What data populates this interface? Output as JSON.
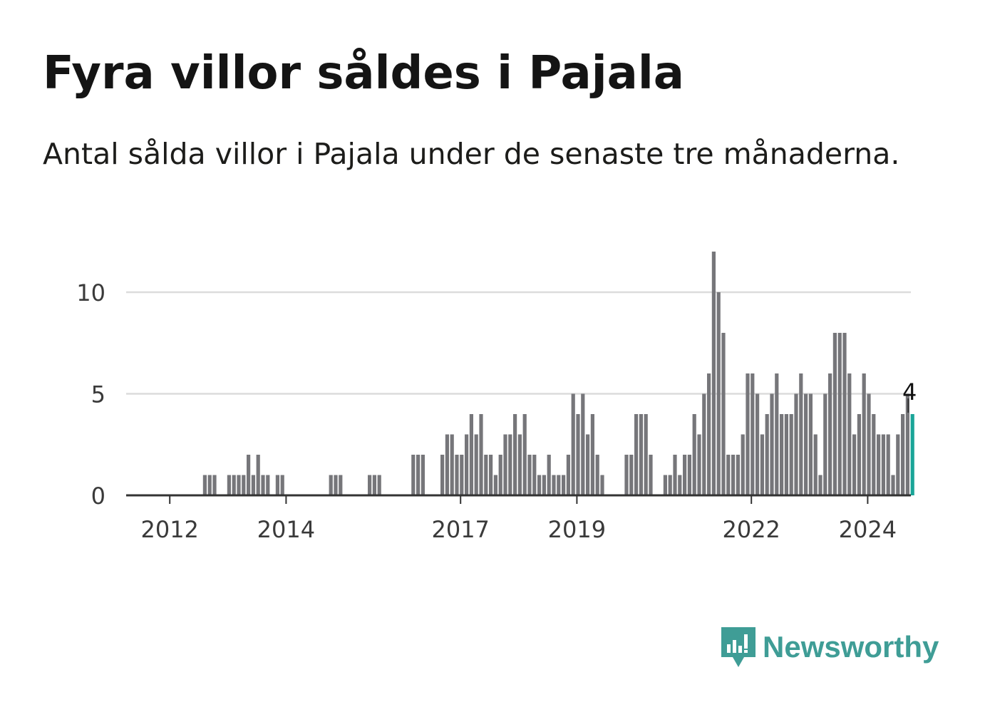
{
  "header": {
    "title": "Fyra villor såldes i Pajala",
    "subtitle": "Antal sålda villor i Pajala under de senaste tre månaderna."
  },
  "colors": {
    "bar": "#76767a",
    "highlight": "#1aa598",
    "grid": "#dcdcdc",
    "axis": "#333333",
    "brand": "#3f9d96"
  },
  "chart_data": {
    "type": "bar",
    "title": "Fyra villor såldes i Pajala",
    "subtitle": "Antal sålda villor i Pajala under de senaste tre månaderna.",
    "xlabel": "",
    "ylabel": "",
    "ylim": [
      0,
      12
    ],
    "yticks": [
      0,
      5,
      10
    ],
    "xticks": [
      "2012",
      "2014",
      "2017",
      "2019",
      "2022",
      "2024"
    ],
    "start": "2011-09",
    "values": [
      0,
      0,
      0,
      0,
      0,
      0,
      0,
      0,
      0,
      0,
      0,
      1,
      1,
      1,
      0,
      0,
      1,
      1,
      1,
      1,
      2,
      1,
      2,
      1,
      1,
      0,
      1,
      1,
      0,
      0,
      0,
      0,
      0,
      0,
      0,
      0,
      0,
      1,
      1,
      1,
      0,
      0,
      0,
      0,
      0,
      1,
      1,
      1,
      0,
      0,
      0,
      0,
      0,
      0,
      2,
      2,
      2,
      0,
      0,
      0,
      2,
      3,
      3,
      2,
      2,
      3,
      4,
      3,
      4,
      2,
      2,
      1,
      2,
      3,
      3,
      4,
      3,
      4,
      2,
      2,
      1,
      1,
      2,
      1,
      1,
      1,
      2,
      5,
      4,
      5,
      3,
      4,
      2,
      1,
      0,
      0,
      0,
      0,
      2,
      2,
      4,
      4,
      4,
      2,
      0,
      0,
      1,
      1,
      2,
      1,
      2,
      2,
      4,
      3,
      5,
      6,
      12,
      10,
      8,
      2,
      2,
      2,
      3,
      6,
      6,
      5,
      3,
      4,
      5,
      6,
      4,
      4,
      4,
      5,
      6,
      5,
      5,
      3,
      1,
      5,
      6,
      8,
      8,
      8,
      6,
      3,
      4,
      6,
      5,
      4,
      3,
      3,
      3,
      1,
      3,
      4,
      5,
      4
    ],
    "highlight_index": 157,
    "annotation": {
      "text": "4",
      "value": 4
    }
  },
  "logo": {
    "text": "Newsworthy"
  }
}
